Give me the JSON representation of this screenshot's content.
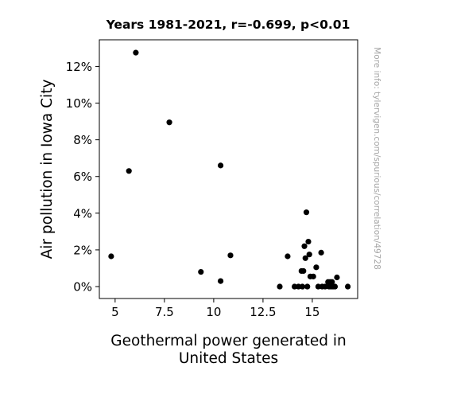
{
  "chart_data": {
    "type": "scatter",
    "title": "Years 1981-2021, r=-0.699, p<0.01",
    "xlabel": [
      "Geothermal power generated in",
      "United States"
    ],
    "ylabel": "Air pollution in Iowa City",
    "xlim": [
      4.2,
      17.3
    ],
    "ylim": [
      -0.65,
      13.45
    ],
    "xticks": [
      5,
      7.5,
      10,
      12.5,
      15
    ],
    "xtick_labels": [
      "5",
      "7.5",
      "10",
      "12.5",
      "15"
    ],
    "yticks": [
      0,
      2,
      4,
      6,
      8,
      10,
      12
    ],
    "ytick_labels": [
      "0%",
      "2%",
      "4%",
      "6%",
      "8%",
      "10%",
      "12%"
    ],
    "grid": false,
    "legend": "none",
    "point_color": "#000000",
    "points": [
      {
        "x": 4.8,
        "y": 1.65
      },
      {
        "x": 5.7,
        "y": 6.3
      },
      {
        "x": 6.05,
        "y": 12.75
      },
      {
        "x": 7.75,
        "y": 8.95
      },
      {
        "x": 9.35,
        "y": 0.8
      },
      {
        "x": 10.35,
        "y": 6.6
      },
      {
        "x": 10.35,
        "y": 0.3
      },
      {
        "x": 10.85,
        "y": 1.7
      },
      {
        "x": 13.35,
        "y": 0.0
      },
      {
        "x": 13.75,
        "y": 1.65
      },
      {
        "x": 14.1,
        "y": 0.0
      },
      {
        "x": 14.3,
        "y": 0.0
      },
      {
        "x": 14.45,
        "y": 0.85
      },
      {
        "x": 14.5,
        "y": 0.0
      },
      {
        "x": 14.55,
        "y": 0.85
      },
      {
        "x": 14.6,
        "y": 2.2
      },
      {
        "x": 14.65,
        "y": 1.55
      },
      {
        "x": 14.7,
        "y": 4.05
      },
      {
        "x": 14.75,
        "y": 0.0
      },
      {
        "x": 14.8,
        "y": 2.45
      },
      {
        "x": 14.85,
        "y": 1.75
      },
      {
        "x": 14.9,
        "y": 0.55
      },
      {
        "x": 15.05,
        "y": 0.55
      },
      {
        "x": 15.2,
        "y": 1.05
      },
      {
        "x": 15.3,
        "y": 0.0
      },
      {
        "x": 15.45,
        "y": 1.85
      },
      {
        "x": 15.5,
        "y": 0.0
      },
      {
        "x": 15.65,
        "y": 0.0
      },
      {
        "x": 15.8,
        "y": 0.25
      },
      {
        "x": 15.85,
        "y": 0.0
      },
      {
        "x": 15.9,
        "y": 0.25
      },
      {
        "x": 15.95,
        "y": 0.0
      },
      {
        "x": 16.0,
        "y": 0.25
      },
      {
        "x": 16.05,
        "y": 0.0
      },
      {
        "x": 16.15,
        "y": 0.0
      },
      {
        "x": 16.25,
        "y": 0.5
      },
      {
        "x": 16.8,
        "y": 0.0
      }
    ]
  },
  "side_note": "More info: tylervigen.com/spurious/correlation/49728"
}
